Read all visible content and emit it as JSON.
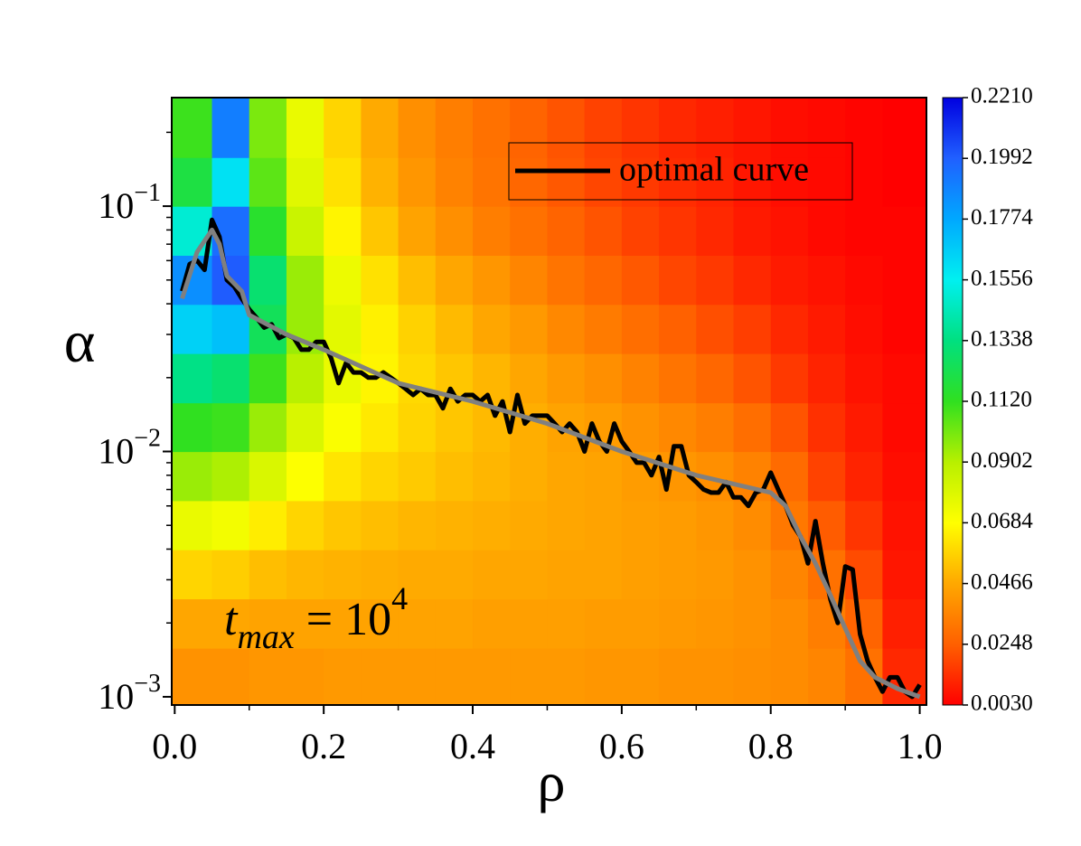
{
  "chart_data": {
    "type": "heatmap",
    "xlabel": "ρ",
    "ylabel": "α",
    "xlim": [
      -0.004,
      1.009
    ],
    "ylim": [
      0.000926,
      0.277
    ],
    "ylog": true,
    "xticks": [
      {
        "value": 0,
        "label": "0.0"
      },
      {
        "value": 0.2,
        "label": "0.2"
      },
      {
        "value": 0.4,
        "label": "0.4"
      },
      {
        "value": 0.6,
        "label": "0.6"
      },
      {
        "value": 0.8,
        "label": "0.8"
      },
      {
        "value": 1,
        "label": "1.0"
      }
    ],
    "xminorticks": [
      0.1,
      0.3,
      0.5,
      0.7,
      0.9
    ],
    "yticks": [
      {
        "value": 0.001,
        "label": "10",
        "exponent": "−3"
      },
      {
        "value": 0.01,
        "label": "10",
        "exponent": "−2"
      },
      {
        "value": 0.1,
        "label": "10",
        "exponent": "−1"
      }
    ],
    "yminorticks": [
      0.002,
      0.003,
      0.004,
      0.005,
      0.006,
      0.007,
      0.008,
      0.009,
      0.02,
      0.03,
      0.04,
      0.05,
      0.06,
      0.07,
      0.08,
      0.09,
      0.2
    ],
    "xbins": [
      -0.005,
      0.05,
      0.1,
      0.15,
      0.2,
      0.25,
      0.3,
      0.35,
      0.4,
      0.45,
      0.5,
      0.55,
      0.6,
      0.65,
      0.7,
      0.75,
      0.8,
      0.85,
      0.9,
      0.95,
      1.01
    ],
    "ybins": [
      0.0009,
      0.00158,
      0.00251,
      0.00398,
      0.00631,
      0.01,
      0.0158,
      0.0251,
      0.0398,
      0.0631,
      0.1,
      0.158,
      0.28
    ],
    "z": [
      [
        0.04,
        0.04,
        0.041,
        0.041,
        0.042,
        0.042,
        0.042,
        0.042,
        0.042,
        0.042,
        0.042,
        0.041,
        0.041,
        0.04,
        0.04,
        0.039,
        0.038,
        0.036,
        0.03,
        0.012
      ],
      [
        0.046,
        0.046,
        0.045,
        0.045,
        0.045,
        0.045,
        0.045,
        0.045,
        0.044,
        0.044,
        0.044,
        0.043,
        0.043,
        0.042,
        0.041,
        0.04,
        0.038,
        0.034,
        0.026,
        0.01
      ],
      [
        0.058,
        0.056,
        0.052,
        0.05,
        0.049,
        0.048,
        0.047,
        0.047,
        0.046,
        0.046,
        0.045,
        0.045,
        0.044,
        0.043,
        0.042,
        0.04,
        0.036,
        0.03,
        0.02,
        0.008
      ],
      [
        0.075,
        0.072,
        0.064,
        0.058,
        0.054,
        0.052,
        0.05,
        0.049,
        0.048,
        0.047,
        0.046,
        0.045,
        0.044,
        0.043,
        0.041,
        0.038,
        0.032,
        0.024,
        0.015,
        0.007
      ],
      [
        0.095,
        0.092,
        0.08,
        0.069,
        0.062,
        0.058,
        0.055,
        0.052,
        0.05,
        0.048,
        0.046,
        0.045,
        0.043,
        0.041,
        0.039,
        0.035,
        0.028,
        0.018,
        0.011,
        0.006
      ],
      [
        0.112,
        0.11,
        0.095,
        0.08,
        0.07,
        0.063,
        0.058,
        0.054,
        0.051,
        0.048,
        0.045,
        0.043,
        0.04,
        0.037,
        0.034,
        0.029,
        0.022,
        0.014,
        0.009,
        0.005
      ],
      [
        0.135,
        0.13,
        0.11,
        0.09,
        0.075,
        0.066,
        0.059,
        0.054,
        0.05,
        0.046,
        0.042,
        0.039,
        0.035,
        0.031,
        0.027,
        0.022,
        0.016,
        0.011,
        0.007,
        0.005
      ],
      [
        0.165,
        0.17,
        0.125,
        0.095,
        0.077,
        0.065,
        0.057,
        0.051,
        0.046,
        0.042,
        0.037,
        0.033,
        0.029,
        0.025,
        0.021,
        0.017,
        0.012,
        0.009,
        0.006,
        0.004
      ],
      [
        0.185,
        0.2,
        0.13,
        0.095,
        0.074,
        0.061,
        0.052,
        0.046,
        0.041,
        0.036,
        0.031,
        0.027,
        0.023,
        0.019,
        0.016,
        0.012,
        0.009,
        0.007,
        0.005,
        0.004
      ],
      [
        0.15,
        0.195,
        0.115,
        0.085,
        0.066,
        0.054,
        0.045,
        0.039,
        0.034,
        0.03,
        0.026,
        0.022,
        0.018,
        0.015,
        0.012,
        0.009,
        0.007,
        0.005,
        0.004,
        0.004
      ],
      [
        0.12,
        0.16,
        0.105,
        0.078,
        0.061,
        0.049,
        0.041,
        0.035,
        0.031,
        0.027,
        0.023,
        0.019,
        0.016,
        0.013,
        0.011,
        0.008,
        0.006,
        0.005,
        0.004,
        0.003
      ],
      [
        0.11,
        0.19,
        0.1,
        0.075,
        0.058,
        0.047,
        0.039,
        0.034,
        0.03,
        0.026,
        0.022,
        0.018,
        0.015,
        0.012,
        0.01,
        0.008,
        0.006,
        0.005,
        0.004,
        0.003
      ]
    ],
    "cbticks": [
      {
        "value": 0.003,
        "label": "0.0030"
      },
      {
        "value": 0.0248,
        "label": "0.0248"
      },
      {
        "value": 0.0466,
        "label": "0.0466"
      },
      {
        "value": 0.0684,
        "label": "0.0684"
      },
      {
        "value": 0.0902,
        "label": "0.0902"
      },
      {
        "value": 0.112,
        "label": "0.1120"
      },
      {
        "value": 0.1338,
        "label": "0.1338"
      },
      {
        "value": 0.1556,
        "label": "0.1556"
      },
      {
        "value": 0.1774,
        "label": "0.1774"
      },
      {
        "value": 0.1992,
        "label": "0.1992"
      },
      {
        "value": 0.221,
        "label": "0.2210"
      }
    ],
    "cbcolors": [
      "#ff0000",
      "#ff6000",
      "#ffa800",
      "#ffff00",
      "#b8f000",
      "#30e020",
      "#00e080",
      "#00f0f0",
      "#00a8ff",
      "#2060ff",
      "#0000e0"
    ],
    "series": [
      {
        "name": "optimal curve",
        "color": "#000000",
        "x": [
          0.01,
          0.02,
          0.03,
          0.04,
          0.05,
          0.06,
          0.07,
          0.08,
          0.09,
          0.1,
          0.11,
          0.12,
          0.13,
          0.14,
          0.15,
          0.16,
          0.17,
          0.18,
          0.19,
          0.2,
          0.21,
          0.22,
          0.23,
          0.24,
          0.25,
          0.26,
          0.27,
          0.28,
          0.29,
          0.3,
          0.31,
          0.32,
          0.33,
          0.34,
          0.35,
          0.36,
          0.37,
          0.38,
          0.39,
          0.4,
          0.41,
          0.42,
          0.43,
          0.44,
          0.45,
          0.46,
          0.47,
          0.48,
          0.49,
          0.5,
          0.51,
          0.52,
          0.53,
          0.54,
          0.55,
          0.56,
          0.57,
          0.58,
          0.59,
          0.6,
          0.61,
          0.62,
          0.63,
          0.64,
          0.65,
          0.66,
          0.67,
          0.68,
          0.69,
          0.7,
          0.71,
          0.72,
          0.73,
          0.74,
          0.75,
          0.76,
          0.77,
          0.78,
          0.79,
          0.8,
          0.81,
          0.82,
          0.83,
          0.84,
          0.85,
          0.86,
          0.87,
          0.88,
          0.89,
          0.9,
          0.91,
          0.92,
          0.93,
          0.94,
          0.95,
          0.96,
          0.97,
          0.98,
          0.99,
          1.0
        ],
        "values": [
          0.045,
          0.058,
          0.06,
          0.055,
          0.088,
          0.075,
          0.05,
          0.047,
          0.042,
          0.038,
          0.035,
          0.032,
          0.033,
          0.029,
          0.03,
          0.029,
          0.026,
          0.026,
          0.028,
          0.028,
          0.024,
          0.019,
          0.023,
          0.021,
          0.021,
          0.02,
          0.02,
          0.021,
          0.02,
          0.019,
          0.018,
          0.017,
          0.018,
          0.017,
          0.017,
          0.015,
          0.018,
          0.016,
          0.017,
          0.017,
          0.016,
          0.017,
          0.014,
          0.016,
          0.012,
          0.017,
          0.013,
          0.014,
          0.014,
          0.014,
          0.013,
          0.012,
          0.013,
          0.012,
          0.01,
          0.013,
          0.011,
          0.01,
          0.013,
          0.011,
          0.01,
          0.009,
          0.009,
          0.008,
          0.0095,
          0.007,
          0.0105,
          0.0105,
          0.008,
          0.0075,
          0.007,
          0.0068,
          0.0068,
          0.0075,
          0.0065,
          0.0065,
          0.006,
          0.0068,
          0.007,
          0.0082,
          0.007,
          0.006,
          0.005,
          0.0045,
          0.0035,
          0.0052,
          0.0035,
          0.0025,
          0.002,
          0.0034,
          0.0033,
          0.0018,
          0.0014,
          0.0012,
          0.00105,
          0.0012,
          0.0012,
          0.00105,
          0.001,
          0.00112
        ]
      },
      {
        "color": "#808080",
        "x": [
          0.01,
          0.03,
          0.05,
          0.06,
          0.07,
          0.09,
          0.1,
          0.15,
          0.2,
          0.3,
          0.4,
          0.5,
          0.6,
          0.7,
          0.8,
          0.82,
          0.84,
          0.86,
          0.88,
          0.9,
          0.92,
          0.94,
          0.97,
          1.0
        ],
        "values": [
          0.042,
          0.065,
          0.08,
          0.07,
          0.052,
          0.045,
          0.036,
          0.03,
          0.026,
          0.019,
          0.016,
          0.013,
          0.01,
          0.008,
          0.0068,
          0.006,
          0.0045,
          0.0035,
          0.0026,
          0.0019,
          0.0014,
          0.0012,
          0.00108,
          0.001
        ]
      }
    ],
    "annotation": {
      "main": "t",
      "sub": "max",
      "text": " = 10",
      "sup": "4"
    }
  }
}
